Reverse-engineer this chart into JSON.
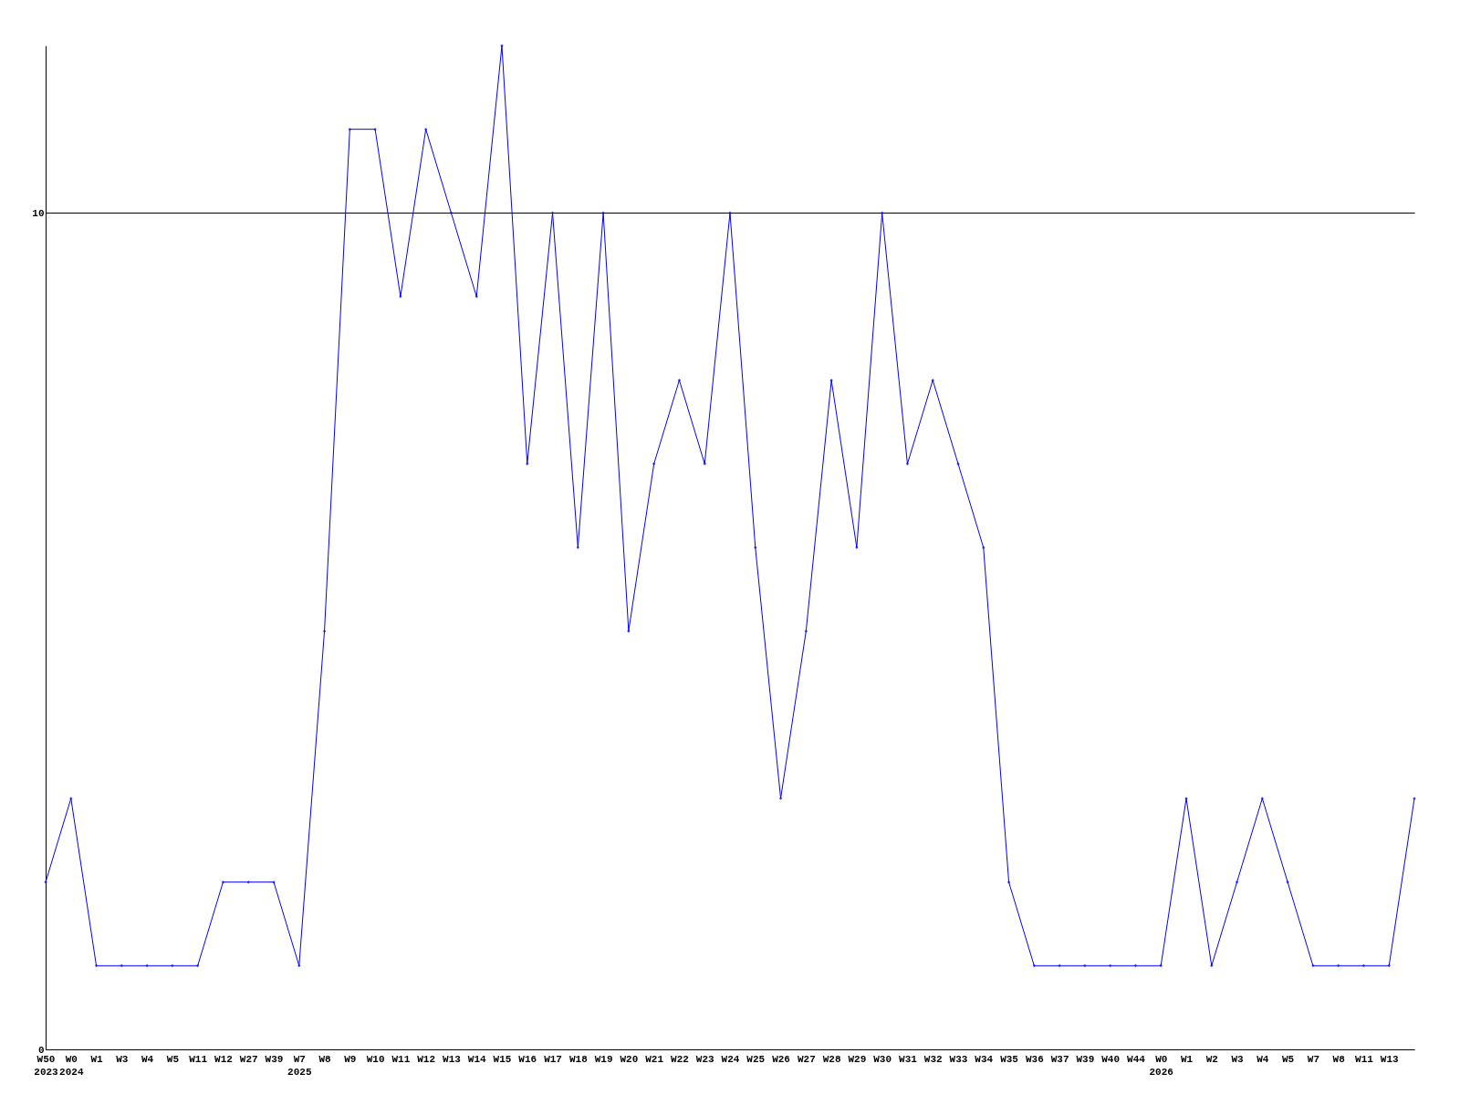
{
  "chart_data": {
    "type": "line",
    "categories": [
      "W50\n2023",
      "W0\n2024",
      "W1",
      "W3",
      "W4",
      "W5",
      "W11",
      "W12",
      "W27",
      "W39",
      "W7\n2025",
      "W8",
      "W9",
      "W10",
      "W11",
      "W12",
      "W13",
      "W14",
      "W15",
      "W16",
      "W17",
      "W18",
      "W19",
      "W20",
      "W21",
      "W22",
      "W23",
      "W24",
      "W25",
      "W26",
      "W27",
      "W28",
      "W29",
      "W30",
      "W31",
      "W32",
      "W33",
      "W34",
      "W35",
      "W36",
      "W37",
      "W39",
      "W40",
      "W44",
      "W0\n2026",
      "W1",
      "W2",
      "W3",
      "W4",
      "W5",
      "W7",
      "W8",
      "W11",
      "W13",
      null
    ],
    "series": [
      {
        "color": "#0000ff",
        "values": [
          2,
          3,
          1,
          1,
          1,
          1,
          1,
          2,
          2,
          2,
          1,
          5,
          11,
          11,
          9,
          11,
          10,
          9,
          12,
          7,
          10,
          6,
          10,
          5,
          7,
          8,
          7,
          10,
          6,
          3,
          5,
          8,
          6,
          10,
          7,
          8,
          7,
          6,
          2,
          1,
          1,
          1,
          1,
          1,
          1,
          3,
          1,
          2,
          3,
          2,
          1,
          1,
          1,
          1,
          3
        ]
      }
    ],
    "ylim": [
      0,
      12
    ],
    "yticks": [
      0,
      10
    ],
    "grid": "y",
    "marker": "diamond",
    "legend": false
  }
}
